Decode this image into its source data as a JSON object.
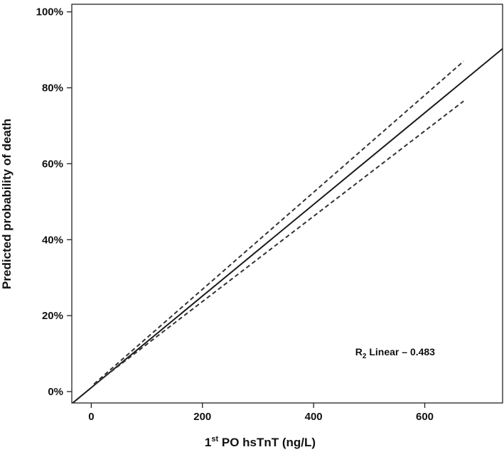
{
  "chart_data": {
    "type": "line",
    "title": "",
    "xlabel_parts": {
      "pre": "1",
      "sup": "st",
      "post": " PO hsTnT (ng/L)"
    },
    "ylabel": "Predicted probability of death",
    "xlim": [
      -35,
      740
    ],
    "ylim": [
      -3,
      102
    ],
    "x_ticks": [
      0,
      200,
      400,
      600
    ],
    "x_tick_labels": [
      "0",
      "200",
      "400",
      "600"
    ],
    "y_ticks": [
      0,
      20,
      40,
      60,
      80,
      100
    ],
    "y_tick_labels": [
      "0%",
      "20%",
      "40%",
      "60%",
      "80%",
      "100%"
    ],
    "grid": false,
    "series": [
      {
        "style": "solid",
        "x": [
          -35,
          740
        ],
        "y": [
          -3.2,
          90.3
        ]
      },
      {
        "style": "dashed",
        "x": [
          5,
          670
        ],
        "y": [
          2.0,
          87.0
        ]
      },
      {
        "style": "dashed",
        "x": [
          5,
          670
        ],
        "y": [
          1.8,
          76.5
        ]
      }
    ],
    "annotation": {
      "parts": {
        "pre": "R",
        "sub": "2",
        "post": " Linear – 0.483"
      },
      "x": 475,
      "y": 9.5
    }
  }
}
